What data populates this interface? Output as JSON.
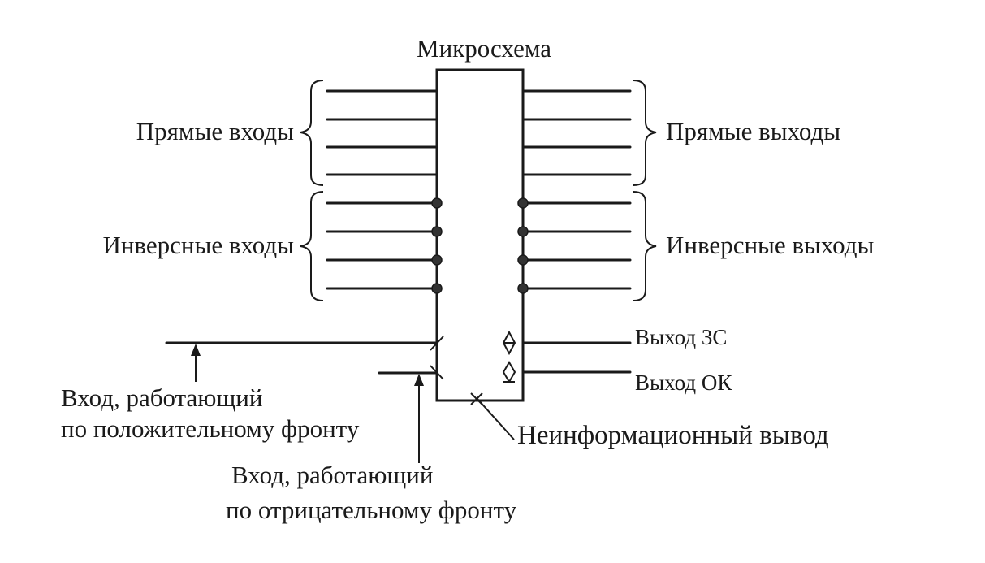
{
  "chip": {
    "title": "Микросхема"
  },
  "groups": {
    "direct_inputs": "Прямые входы",
    "inverse_inputs": "Инверсные входы",
    "direct_outputs": "Прямые выходы",
    "inverse_outputs": "Инверсные выходы"
  },
  "special_outputs": {
    "three_state": "Выход 3С",
    "open_collector": "Выход ОК"
  },
  "non_info_pin": "Неинформационный вывод",
  "edge_inputs": {
    "positive_line1": "Вход, работающий",
    "positive_line2": "по положительному фронту",
    "negative_line1": "Вход, работающий",
    "negative_line2": "по отрицательному фронту"
  },
  "colors": {
    "ink": "#1a1a1a",
    "background": "#ffffff"
  }
}
